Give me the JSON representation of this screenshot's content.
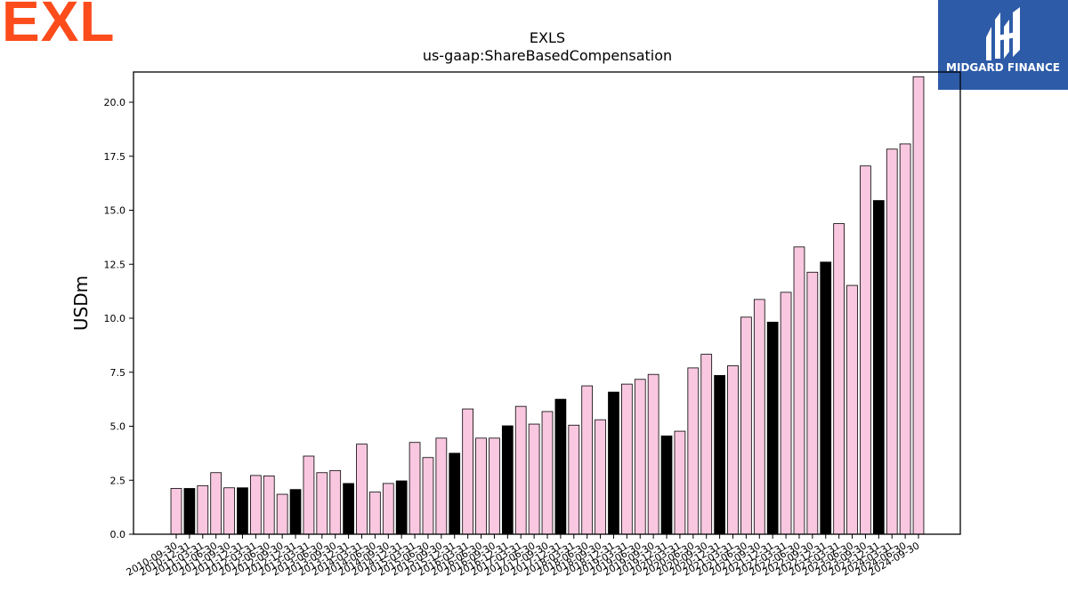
{
  "branding": {
    "exl_logo": "EXL",
    "exl_color": "#fc4c1c",
    "midgard_logo": "MIDGARD FINANCE",
    "midgard_color": "#2d5ba8"
  },
  "colors": {
    "bar_normal": "#f9c8e0",
    "bar_highlight": "#000000",
    "bar_edge": "#000000"
  },
  "chart_data": {
    "type": "bar",
    "title": "EXLS",
    "subtitle": "us-gaap:ShareBasedCompensation",
    "xlabel": "",
    "ylabel": "USDm",
    "ylim": [
      0,
      21.4
    ],
    "yticks": [
      "0.0",
      "2.5",
      "5.0",
      "7.5",
      "10.0",
      "12.5",
      "15.0",
      "17.5",
      "20.0"
    ],
    "grid": false,
    "highlight_rule": "Q4 / December periods shown in black",
    "categories": [
      "2010-09-30",
      "2010-12-31",
      "2011-03-31",
      "2011-06-30",
      "2011-09-30",
      "2011-12-31",
      "2012-03-31",
      "2012-06-30",
      "2012-09-30",
      "2012-12-31",
      "2013-03-31",
      "2013-06-30",
      "2013-09-30",
      "2013-12-31",
      "2014-03-31",
      "2014-06-30",
      "2014-09-30",
      "2014-12-31",
      "2015-03-31",
      "2015-06-30",
      "2015-09-30",
      "2015-12-31",
      "2016-03-31",
      "2016-06-30",
      "2016-09-30",
      "2016-12-31",
      "2017-03-31",
      "2017-06-30",
      "2017-09-30",
      "2017-12-31",
      "2018-03-31",
      "2018-06-30",
      "2018-09-30",
      "2018-12-31",
      "2019-03-31",
      "2019-06-30",
      "2019-09-30",
      "2019-12-31",
      "2020-03-31",
      "2020-06-30",
      "2020-09-30",
      "2020-12-31",
      "2021-03-31",
      "2021-06-30",
      "2021-09-30",
      "2021-12-31",
      "2022-03-31",
      "2022-06-30",
      "2022-09-30",
      "2022-12-31",
      "2023-03-31",
      "2023-06-30",
      "2023-09-30",
      "2023-12-31",
      "2024-03-31",
      "2024-06-30",
      "2024-09-30"
    ],
    "values": [
      2.12,
      2.12,
      2.25,
      2.85,
      2.15,
      2.15,
      2.72,
      2.7,
      1.85,
      2.07,
      3.62,
      2.85,
      2.95,
      2.35,
      4.17,
      1.95,
      2.35,
      2.47,
      4.25,
      3.55,
      4.45,
      3.75,
      5.8,
      4.45,
      4.45,
      5.02,
      5.92,
      5.1,
      5.68,
      6.25,
      5.05,
      6.87,
      5.3,
      6.58,
      6.95,
      7.17,
      7.4,
      4.55,
      4.77,
      7.7,
      8.33,
      7.35,
      7.8,
      10.05,
      10.87,
      9.82,
      11.2,
      13.3,
      12.13,
      12.6,
      14.38,
      11.52,
      17.05,
      15.45,
      17.83,
      18.07,
      21.18
    ],
    "highlight": [
      false,
      true,
      false,
      false,
      false,
      true,
      false,
      false,
      false,
      true,
      false,
      false,
      false,
      true,
      false,
      false,
      false,
      true,
      false,
      false,
      false,
      true,
      false,
      false,
      false,
      true,
      false,
      false,
      false,
      true,
      false,
      false,
      false,
      true,
      false,
      false,
      false,
      true,
      false,
      false,
      false,
      true,
      false,
      false,
      false,
      true,
      false,
      false,
      false,
      true,
      false,
      false,
      false,
      true,
      false,
      false,
      false
    ]
  }
}
